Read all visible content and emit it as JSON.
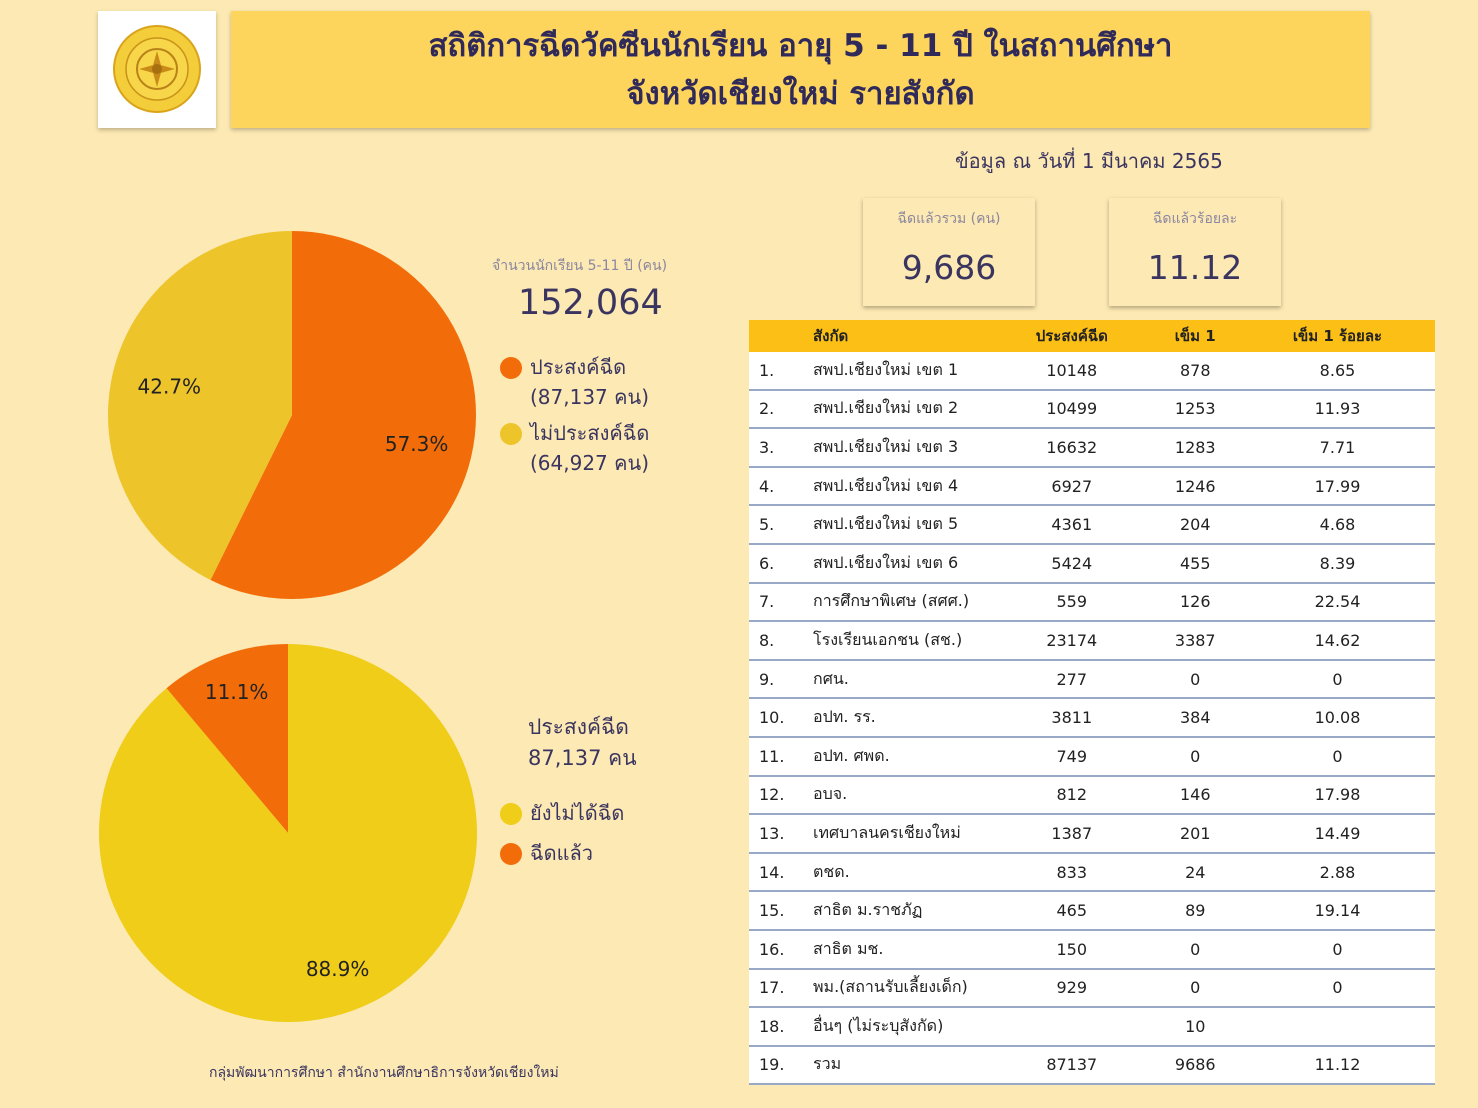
{
  "header": {
    "logo_text": "สำนักงานศึกษาธิการจังหวัดเชียงใหม่ CHIANGMAI PROVINCIAL EDUCATION OFFICE",
    "title_line1": "สถิติการฉีดวัคซีนนักเรียน อายุ 5 - 11 ปี ในสถานศึกษา",
    "title_line2": "จังหวัดเชียงใหม่ รายสังกัด"
  },
  "as_of": "ข้อมูล ณ วันที่ 1 มีนาคม 2565",
  "cards": {
    "total_label": "ฉีดแล้วรวม (คน)",
    "total_value": "9,686",
    "percent_label": "ฉีดแล้วร้อยละ",
    "percent_value": "11.12"
  },
  "pie1": {
    "total_label": "จำนวนนักเรียน 5-11 ปี (คน)",
    "total_value": "152,064",
    "legend": [
      {
        "label": "ประสงค์ฉีด (87,137 คน)",
        "color": "#f26d0a"
      },
      {
        "label": "ไม่ประสงค์ฉีด (64,927 คน)",
        "color": "#edc42a"
      }
    ]
  },
  "pie2": {
    "title_line1": "ประสงค์ฉีด",
    "title_line2": "87,137 คน",
    "legend": [
      {
        "label": "ยังไม่ได้ฉีด",
        "color": "#efcd18"
      },
      {
        "label": "ฉีดแล้ว",
        "color": "#f26d0a"
      }
    ]
  },
  "chart_data": [
    {
      "type": "pie",
      "slices": [
        {
          "label": "ประสงค์ฉีด",
          "value": 87137,
          "percent_label": "57.3%",
          "color": "#f26d0a"
        },
        {
          "label": "ไม่ประสงค์ฉีด",
          "value": 64927,
          "percent_label": "42.7%",
          "color": "#edc42a"
        }
      ]
    },
    {
      "type": "pie",
      "slices": [
        {
          "label": "ฉีดแล้ว",
          "value": 9686,
          "percent_label": "11.1%",
          "color": "#f26d0a"
        },
        {
          "label": "ยังไม่ได้ฉีด",
          "value": 77451,
          "percent_label": "88.9%",
          "color": "#efcd18"
        }
      ]
    },
    {
      "type": "table",
      "columns": [
        "",
        "สังกัด",
        "ประสงค์ฉีด",
        "เข็ม 1",
        "เข็ม 1 ร้อยละ"
      ],
      "rows": [
        [
          "1.",
          "สพป.เชียงใหม่ เขต 1",
          "10148",
          "878",
          "8.65"
        ],
        [
          "2.",
          "สพป.เชียงใหม่ เขต 2",
          "10499",
          "1253",
          "11.93"
        ],
        [
          "3.",
          "สพป.เชียงใหม่ เขต 3",
          "16632",
          "1283",
          "7.71"
        ],
        [
          "4.",
          "สพป.เชียงใหม่ เขต 4",
          "6927",
          "1246",
          "17.99"
        ],
        [
          "5.",
          "สพป.เชียงใหม่ เขต 5",
          "4361",
          "204",
          "4.68"
        ],
        [
          "6.",
          "สพป.เชียงใหม่ เขต 6",
          "5424",
          "455",
          "8.39"
        ],
        [
          "7.",
          "การศึกษาพิเศษ (สศศ.)",
          "559",
          "126",
          "22.54"
        ],
        [
          "8.",
          "โรงเรียนเอกชน (สช.)",
          "23174",
          "3387",
          "14.62"
        ],
        [
          "9.",
          "กศน.",
          "277",
          "0",
          "0"
        ],
        [
          "10.",
          "อปท. รร.",
          "3811",
          "384",
          "10.08"
        ],
        [
          "11.",
          "อปท. ศพด.",
          "749",
          "0",
          "0"
        ],
        [
          "12.",
          "อบจ.",
          "812",
          "146",
          "17.98"
        ],
        [
          "13.",
          "เทศบาลนครเชียงใหม่",
          "1387",
          "201",
          "14.49"
        ],
        [
          "14.",
          "ตชด.",
          "833",
          "24",
          "2.88"
        ],
        [
          "15.",
          "สาธิต ม.ราชภัฏ",
          "465",
          "89",
          "19.14"
        ],
        [
          "16.",
          "สาธิต มช.",
          "150",
          "0",
          "0"
        ],
        [
          "17.",
          "พม.(สถานรับเลี้ยงเด็ก)",
          "929",
          "0",
          "0"
        ],
        [
          "18.",
          "อื่นๆ (ไม่ระบุสังกัด)",
          "",
          "10",
          ""
        ],
        [
          "19.",
          "รวม",
          "87137",
          "9686",
          "11.12"
        ]
      ]
    }
  ],
  "footer": "กลุ่มพัฒนาการศึกษา สำนักงานศึกษาธิการจังหวัดเชียงใหม่"
}
